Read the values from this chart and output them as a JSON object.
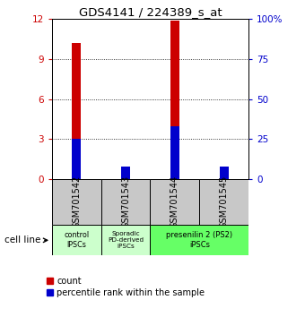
{
  "title": "GDS4141 / 224389_s_at",
  "samples": [
    "GSM701542",
    "GSM701543",
    "GSM701544",
    "GSM701545"
  ],
  "count_values": [
    10.2,
    0.7,
    11.85,
    0.3
  ],
  "percentile_values": [
    25.0,
    8.0,
    33.0,
    8.0
  ],
  "ylim_left": [
    0,
    12
  ],
  "ylim_right": [
    0,
    100
  ],
  "yticks_left": [
    0,
    3,
    6,
    9,
    12
  ],
  "yticks_right": [
    0,
    25,
    50,
    75,
    100
  ],
  "ytick_labels_right": [
    "0",
    "25",
    "50",
    "75",
    "100%"
  ],
  "bar_width": 0.18,
  "count_color": "#cc0000",
  "percentile_color": "#0000cc",
  "bg_color": "#ffffff",
  "sample_box_color": "#c8c8c8",
  "group1_color": "#ccffcc",
  "group2_color": "#66ff66",
  "label_cell_line": "cell line",
  "legend_count_label": "count",
  "legend_percentile_label": "percentile rank within the sample",
  "left_tick_color": "#cc0000",
  "right_tick_color": "#0000cc"
}
